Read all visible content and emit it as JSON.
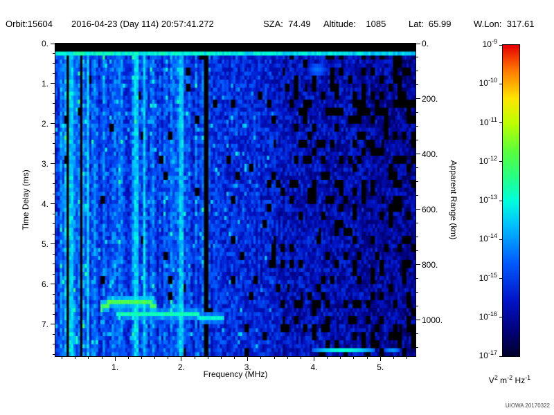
{
  "header": {
    "orbit": "Orbit:15604",
    "datetime": "2016-04-23 (Day 114) 20:57:41.272",
    "sza": "SZA:  74.49",
    "altitude": "Altitude:    1085",
    "lat": "Lat:  65.99",
    "wlon": "W.Lon:  317.61"
  },
  "credit": "UIOWA 20170322",
  "chart_data": {
    "type": "heatmap",
    "description": "Radar sounder ionogram spectrogram: spectral density vs frequency and time delay, rainbow colormap on log scale",
    "xlabel": "Frequency (MHz)",
    "ylabel": "Time Delay (ms)",
    "y2label": "Apparent Range (km)",
    "colorbar_unit": "V^2 m^-2 Hz^-1",
    "unit_parts": [
      {
        "base": "V",
        "exp": "2"
      },
      {
        "base": " m",
        "exp": "-2"
      },
      {
        "base": " Hz",
        "exp": "-1"
      }
    ],
    "xlim": [
      0.1,
      5.53
    ],
    "ylim": [
      0,
      7.8
    ],
    "y2lim": [
      0,
      1131
    ],
    "colorbar_range_exponents": [
      -9,
      -17
    ],
    "colorbar_tick_exponents": [
      "-9",
      "-10",
      "-11",
      "-12",
      "-13",
      "-14",
      "-15",
      "-16",
      "-17"
    ],
    "x_ticks": [
      {
        "value": 1,
        "label": "1."
      },
      {
        "value": 2,
        "label": "2."
      },
      {
        "value": 3,
        "label": "3."
      },
      {
        "value": 4,
        "label": "4."
      },
      {
        "value": 5,
        "label": "5."
      }
    ],
    "y_ticks": [
      {
        "value": 0,
        "label": "0."
      },
      {
        "value": 1,
        "label": "1."
      },
      {
        "value": 2,
        "label": "2."
      },
      {
        "value": 3,
        "label": "3."
      },
      {
        "value": 4,
        "label": "4."
      },
      {
        "value": 5,
        "label": "5."
      },
      {
        "value": 6,
        "label": "6."
      },
      {
        "value": 7,
        "label": "7."
      }
    ],
    "y2_ticks": [
      {
        "value": 0,
        "label": "0."
      },
      {
        "value": 200,
        "label": "200."
      },
      {
        "value": 400,
        "label": "400."
      },
      {
        "value": 600,
        "label": "600."
      },
      {
        "value": 800,
        "label": "800."
      },
      {
        "value": 1000,
        "label": "1000."
      }
    ],
    "features": {
      "seed": 7,
      "grid": {
        "cols": 160,
        "rows": 78
      },
      "top_black_band_ms": [
        0,
        0.17
      ],
      "surface_line_ms": [
        0.17,
        0.32
      ],
      "surface_line_intensity": 0.52,
      "base_profile": [
        [
          0.1,
          0.31
        ],
        [
          0.6,
          0.3
        ],
        [
          1.2,
          0.29
        ],
        [
          2.0,
          0.27
        ],
        [
          2.38,
          0.25
        ],
        [
          2.5,
          0.24
        ],
        [
          3.2,
          0.21
        ],
        [
          3.7,
          0.17
        ],
        [
          4.3,
          0.15
        ],
        [
          5.0,
          0.13
        ],
        [
          5.53,
          0.12
        ]
      ],
      "black_prob_profile": [
        [
          0.1,
          0.02
        ],
        [
          3.2,
          0.03
        ],
        [
          3.7,
          0.12
        ],
        [
          4.3,
          0.2
        ],
        [
          5.0,
          0.28
        ],
        [
          5.53,
          0.38
        ]
      ],
      "bright_columns_mhz": [
        0.34,
        0.58,
        1.32,
        1.44,
        2.0
      ],
      "dark_columns_mhz": [
        0.28,
        0.49,
        2.38
      ],
      "echo_traces": [
        {
          "points": [
            [
              0.78,
              6.62
            ],
            [
              0.9,
              6.5
            ],
            [
              1.05,
              6.44
            ],
            [
              1.3,
              6.43
            ],
            [
              1.5,
              6.47
            ],
            [
              1.62,
              6.55
            ]
          ],
          "intensity": 0.63,
          "thickness_ms": 0.16
        },
        {
          "points": [
            [
              1.02,
              6.74
            ],
            [
              1.35,
              6.7
            ],
            [
              1.7,
              6.72
            ],
            [
              2.0,
              6.75
            ],
            [
              2.24,
              6.78
            ]
          ],
          "intensity": 0.53,
          "thickness_ms": 0.13
        },
        {
          "points": [
            [
              2.3,
              6.8
            ],
            [
              2.45,
              6.8
            ],
            [
              2.64,
              6.84
            ]
          ],
          "intensity": 0.5,
          "thickness_ms": 0.12
        }
      ],
      "blobs": [
        {
          "x": 4.45,
          "y": 7.65,
          "rx": 0.48,
          "ry": 0.09,
          "intensity": 0.5
        },
        {
          "x": 5.18,
          "y": 7.68,
          "rx": 0.14,
          "ry": 0.07,
          "intensity": 0.4
        },
        {
          "x": 4.05,
          "y": 0.65,
          "rx": 0.14,
          "ry": 0.18,
          "intensity": 0.33
        }
      ]
    }
  }
}
